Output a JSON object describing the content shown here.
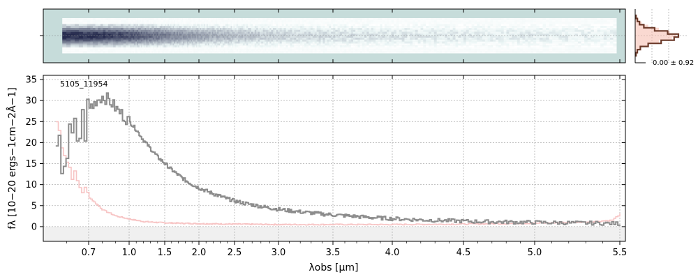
{
  "chart_data": [
    {
      "type": "heatmap",
      "name": "2D spectrum",
      "colormap": "bone_r",
      "background_color": "#c6dcda",
      "xlim": [
        0.5,
        5.52
      ],
      "trace_profile": [
        {
          "x": 0.6,
          "intensity": 1.0
        },
        {
          "x": 0.8,
          "intensity": 0.95
        },
        {
          "x": 1.0,
          "intensity": 0.85
        },
        {
          "x": 1.5,
          "intensity": 0.65
        },
        {
          "x": 2.0,
          "intensity": 0.5
        },
        {
          "x": 2.5,
          "intensity": 0.38
        },
        {
          "x": 3.0,
          "intensity": 0.3
        },
        {
          "x": 4.0,
          "intensity": 0.22
        },
        {
          "x": 5.0,
          "intensity": 0.18
        },
        {
          "x": 5.5,
          "intensity": 0.15
        }
      ]
    },
    {
      "type": "line",
      "name": "profile",
      "annotation": "0.00 ± 0.92",
      "series": [
        {
          "color": "#6b3a2a",
          "profile": [
            0.02,
            0.05,
            0.1,
            0.2,
            0.45,
            0.75,
            1.0,
            0.9,
            0.6,
            0.3,
            0.12,
            0.05,
            0.02
          ]
        },
        {
          "color": "#f6b9ab",
          "profile": [
            0.04,
            0.08,
            0.15,
            0.3,
            0.55,
            0.8,
            0.95,
            0.85,
            0.55,
            0.28,
            0.12,
            0.06,
            0.03
          ]
        }
      ]
    },
    {
      "type": "line",
      "title": "",
      "label": "5105_11954",
      "xlabel": "λobs [μm]",
      "ylabel": "fλ [10−20 ergs−1cm−2Å−1]",
      "xscale": "nonlinear (resolution-scaled)",
      "xlim": [
        0.5,
        5.52
      ],
      "ylim": [
        -3.5,
        36
      ],
      "x_ticks": [
        0.7,
        1.0,
        1.5,
        2.0,
        2.5,
        3.0,
        3.5,
        4.0,
        4.5,
        5.0,
        5.5
      ],
      "x_tick_labels": [
        "0.7",
        "1.0",
        "1.5",
        "2.0",
        "2.5",
        "3.0",
        "3.5",
        "4.0",
        "4.5",
        "5.0",
        "5.5"
      ],
      "y_ticks": [
        0,
        5,
        10,
        15,
        20,
        25,
        30,
        35
      ],
      "y_tick_labels": [
        "0",
        "5",
        "10",
        "15",
        "20",
        "25",
        "30",
        "35"
      ],
      "grid": true,
      "series": [
        {
          "color": "#8c8c8c",
          "x": [
            0.55,
            0.6,
            0.65,
            0.7,
            0.75,
            0.8,
            0.85,
            0.9,
            1.0,
            1.1,
            1.2,
            1.3,
            1.4,
            1.5,
            1.6,
            1.7,
            1.8,
            1.9,
            2.0,
            2.2,
            2.4,
            2.6,
            2.8,
            3.0,
            3.2,
            3.4,
            3.6,
            3.8,
            4.0,
            4.2,
            4.4,
            4.6,
            4.8,
            5.0,
            5.2,
            5.4,
            5.5
          ],
          "y": [
            15,
            18,
            22,
            27,
            30,
            31,
            30,
            28,
            25,
            23,
            20.5,
            18.5,
            16.5,
            15,
            13.5,
            12.2,
            11,
            10,
            9.2,
            7.8,
            6.6,
            5.6,
            4.8,
            4.1,
            3.5,
            3.0,
            2.6,
            2.2,
            1.9,
            1.6,
            1.4,
            1.2,
            1.1,
            1.0,
            0.9,
            0.8,
            0.7
          ]
        },
        {
          "color": "#f7c4c4",
          "x": [
            0.55,
            0.6,
            0.65,
            0.7,
            0.8,
            0.9,
            1.0,
            1.2,
            1.5,
            2.0,
            2.5,
            3.0,
            3.5,
            4.0,
            4.5,
            5.0,
            5.3,
            5.45,
            5.5
          ],
          "y": [
            25,
            15,
            10,
            7,
            4,
            2.5,
            1.8,
            1.2,
            0.9,
            0.7,
            0.6,
            0.5,
            0.5,
            0.5,
            0.6,
            0.8,
            1.1,
            1.5,
            3.0
          ]
        }
      ],
      "band": {
        "y0": -3.5,
        "y1": 0,
        "color": "#f0f0f0"
      }
    }
  ]
}
